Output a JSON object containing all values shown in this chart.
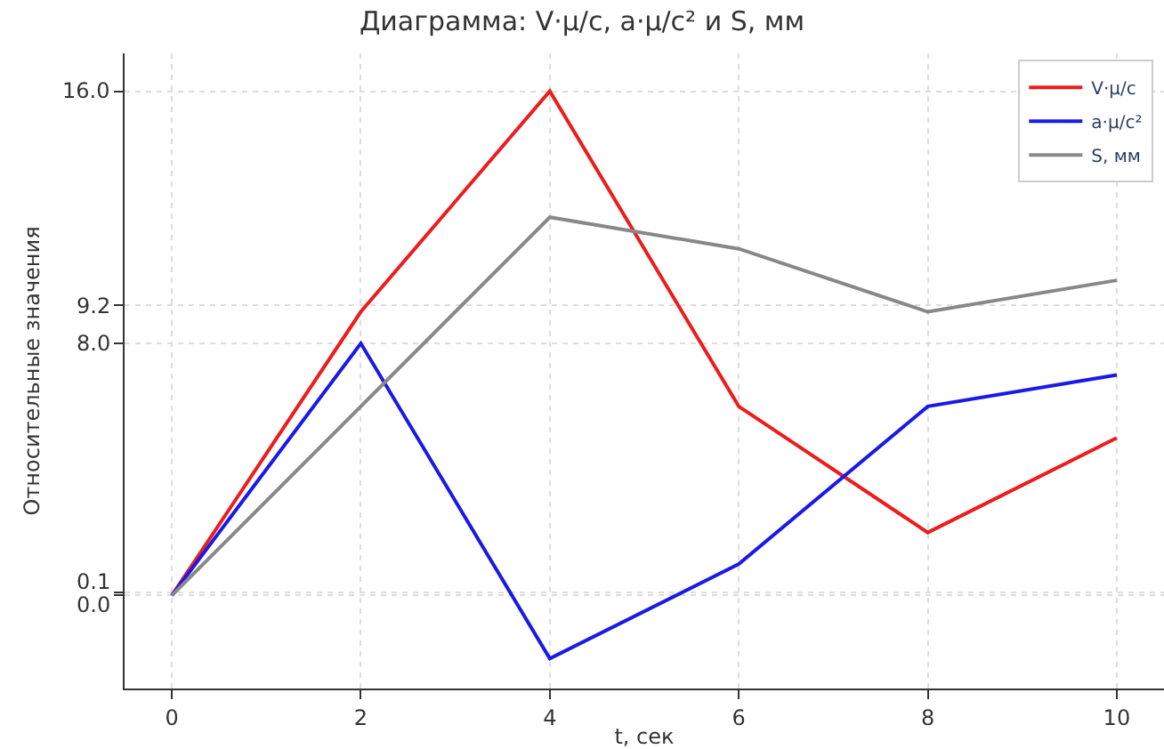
{
  "chart_data": {
    "type": "line",
    "title": "Диаграмма: V·μ/с, a·μ/с² и S, мм",
    "xlabel": "t, сек",
    "ylabel": "Относительные значения",
    "x": [
      0,
      2,
      4,
      6,
      8,
      10
    ],
    "series": [
      {
        "name": "V·μ/с",
        "color": "#ee1c1c",
        "values": [
          0,
          9.0,
          16.0,
          6.0,
          2.0,
          5.0
        ]
      },
      {
        "name": "a·μ/с²",
        "color": "#1a1ae6",
        "values": [
          0,
          8.0,
          -2.0,
          1.0,
          6.0,
          7.0
        ]
      },
      {
        "name": "S, мм",
        "color": "#888888",
        "values": [
          0,
          6.0,
          12.0,
          11.0,
          9.0,
          10.0
        ]
      }
    ],
    "xlim": [
      -0.5,
      10.5
    ],
    "xticks": [
      0,
      2,
      4,
      6,
      8,
      10
    ],
    "ylim": [
      -2.95,
      17.2
    ],
    "yticks": [
      {
        "value": 0.0,
        "label": "0.0"
      },
      {
        "value": 0.1,
        "label": "0.1"
      },
      {
        "value": 8.0,
        "label": "8.0"
      },
      {
        "value": 9.2,
        "label": "9.2"
      },
      {
        "value": 16.0,
        "label": "16.0"
      }
    ],
    "grid": true,
    "legend": "top right",
    "marker": "none",
    "line_style": "solid"
  }
}
